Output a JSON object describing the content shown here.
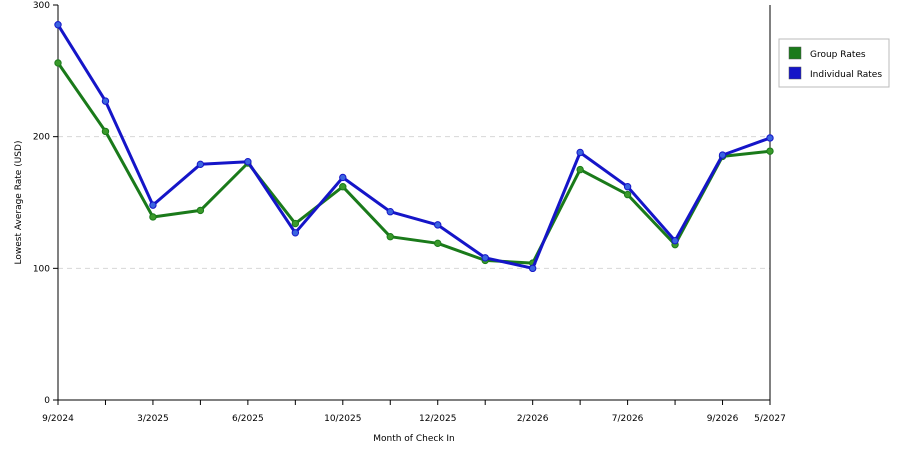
{
  "chart_data": {
    "type": "line",
    "xlabel": "Month of Check In",
    "ylabel": "Lowest Average Rate (USD)",
    "ylim": [
      0,
      300
    ],
    "yticks": [
      0,
      100,
      200,
      300
    ],
    "grid": true,
    "legend_position": "right",
    "x_labels": [
      "9/2024",
      "3/2025",
      "6/2025",
      "10/2025",
      "12/2025",
      "2/2026",
      "7/2026",
      "9/2026",
      "5/2027"
    ],
    "x_label_point_index": [
      0,
      2,
      4,
      6,
      8,
      10,
      12,
      14,
      15
    ],
    "series": [
      {
        "name": "Group Rates",
        "color": "#1a7a1a",
        "marker_color": "#3a9a2a",
        "values": [
          256,
          204,
          139,
          144,
          180,
          134,
          162,
          124,
          119,
          106,
          104,
          175,
          156,
          118,
          185,
          189
        ]
      },
      {
        "name": "Individual Rates",
        "color": "#1515c8",
        "marker_color": "#3a64e0",
        "values": [
          285,
          227,
          148,
          179,
          181,
          127,
          169,
          143,
          133,
          108,
          100,
          188,
          162,
          121,
          186,
          199
        ]
      }
    ]
  }
}
